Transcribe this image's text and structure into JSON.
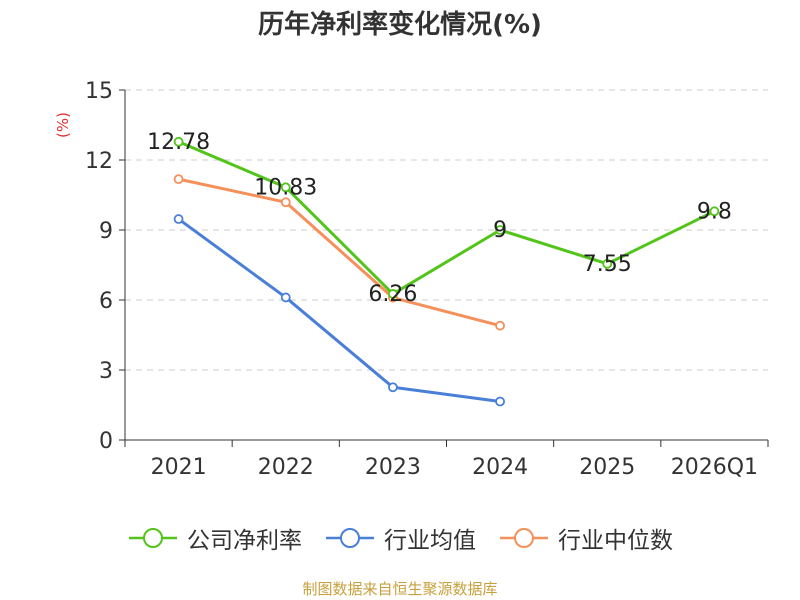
{
  "chart_data": {
    "type": "line",
    "title": "历年净利率变化情况(%)",
    "ylabel": "(%)",
    "xlabel": "",
    "categories": [
      "2021",
      "2022",
      "2023",
      "2024",
      "2025",
      "2026Q1"
    ],
    "ylim": [
      0,
      15
    ],
    "yticks": [
      0,
      3,
      6,
      9,
      12,
      15
    ],
    "grid": true,
    "legend_position": "bottom",
    "series": [
      {
        "name": "公司净利率",
        "color": "#52c41a",
        "values": [
          12.78,
          10.83,
          6.26,
          9,
          7.55,
          9.8
        ],
        "labels": [
          "12.78",
          "10.83",
          "6.26",
          "9",
          "7.55",
          "9.8"
        ]
      },
      {
        "name": "行业均值",
        "color": "#4a7fd8",
        "values": [
          9.47,
          6.11,
          2.26,
          1.65,
          null,
          null
        ]
      },
      {
        "name": "行业中位数",
        "color": "#f5905a",
        "values": [
          11.18,
          10.19,
          6.1,
          4.9,
          null,
          null
        ]
      }
    ]
  },
  "colors": {
    "title": "#333333",
    "axis": "#333333",
    "grid": "#cccccc",
    "ylabel": "#e03030",
    "source": "#c8a03c"
  },
  "footer": {
    "source": "制图数据来自恒生聚源数据库"
  }
}
